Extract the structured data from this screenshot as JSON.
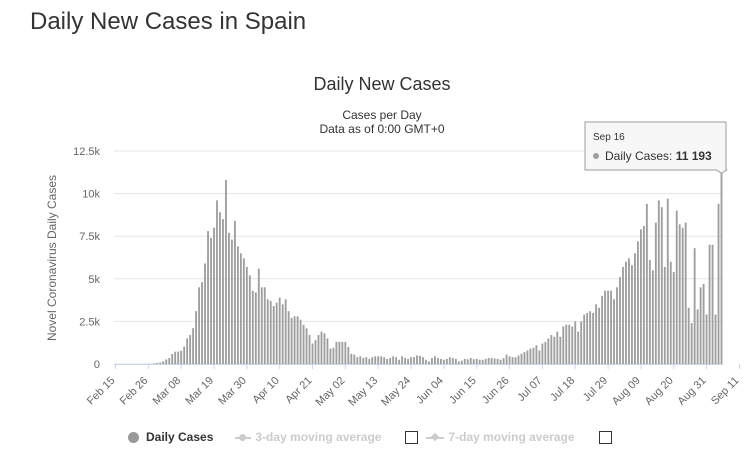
{
  "page_title": "Daily New Cases in Spain",
  "chart_data": {
    "type": "bar",
    "title": "Daily New Cases",
    "subtitle_lines": [
      "Cases per Day",
      "Data as of 0:00 GMT+0"
    ],
    "ylabel": "Novel Coronavirus Daily Cases",
    "xlabel": "",
    "ylim": [
      0,
      12500
    ],
    "yticks": [
      0,
      2500,
      5000,
      7500,
      10000,
      12500
    ],
    "ytick_labels": [
      "0",
      "2.5k",
      "5k",
      "7.5k",
      "10k",
      "12.5k"
    ],
    "grid": true,
    "start_date": "Feb 15",
    "end_date": "Sep 16",
    "xtick_labels": [
      "Feb 15",
      "Feb 26",
      "Mar 08",
      "Mar 19",
      "Mar 30",
      "Apr 10",
      "Apr 21",
      "May 02",
      "May 13",
      "May 24",
      "Jun 04",
      "Jun 15",
      "Jun 26",
      "Jul 07",
      "Jul 18",
      "Jul 29",
      "Aug 09",
      "Aug 20",
      "Aug 31",
      "Sep 11"
    ],
    "bar_color": "#9e9e9e",
    "series": [
      {
        "name": "Daily Cases",
        "values": [
          0,
          0,
          0,
          0,
          0,
          0,
          0,
          0,
          0,
          0,
          0,
          15,
          10,
          40,
          60,
          90,
          160,
          270,
          350,
          590,
          720,
          730,
          780,
          1030,
          1500,
          1700,
          2100,
          3100,
          4500,
          4800,
          5900,
          7800,
          7400,
          8000,
          9600,
          8900,
          8500,
          10800,
          7700,
          7300,
          8400,
          6900,
          6500,
          6200,
          5700,
          5200,
          4300,
          4200,
          5600,
          4500,
          4500,
          3800,
          3700,
          3400,
          3600,
          3900,
          3500,
          3800,
          3100,
          2700,
          2800,
          2800,
          2600,
          2300,
          2100,
          1700,
          1200,
          1400,
          1700,
          1900,
          1800,
          1500,
          900,
          950,
          1300,
          1300,
          1300,
          1300,
          1000,
          600,
          550,
          400,
          450,
          350,
          400,
          300,
          400,
          450,
          450,
          450,
          400,
          300,
          350,
          450,
          400,
          250,
          450,
          350,
          300,
          400,
          400,
          500,
          480,
          400,
          250,
          150,
          350,
          450,
          350,
          300,
          250,
          300,
          400,
          350,
          300,
          150,
          200,
          300,
          280,
          350,
          280,
          300,
          250,
          250,
          300,
          350,
          350,
          320,
          300,
          250,
          350,
          550,
          450,
          400,
          400,
          500,
          600,
          700,
          800,
          900,
          950,
          1100,
          800,
          1200,
          1300,
          1500,
          1700,
          1600,
          1900,
          1600,
          2200,
          2300,
          2300,
          2200,
          2500,
          1900,
          2500,
          2900,
          3000,
          3100,
          3000,
          3500,
          3300,
          4000,
          4300,
          4300,
          4300,
          3800,
          4500,
          5100,
          5700,
          6000,
          6200,
          5800,
          6500,
          7200,
          7900,
          8100,
          9400,
          6100,
          5500,
          8300,
          9600,
          9200,
          5700,
          9700,
          6000,
          5400,
          9000,
          8200,
          8000,
          8300,
          3300,
          2400,
          6800,
          3200,
          4500,
          4700,
          2900,
          7000,
          7000,
          2900,
          9400,
          11193
        ]
      }
    ],
    "tooltip": {
      "date": "Sep 16",
      "series": "Daily Cases",
      "value": "11 193"
    }
  },
  "legend": {
    "items": [
      {
        "label": "Daily Cases",
        "active": true,
        "color": "#999999"
      },
      {
        "label": "3-day moving average",
        "active": false,
        "color": "#cccccc"
      },
      {
        "label": "7-day moving average",
        "active": false,
        "color": "#cccccc"
      }
    ]
  }
}
